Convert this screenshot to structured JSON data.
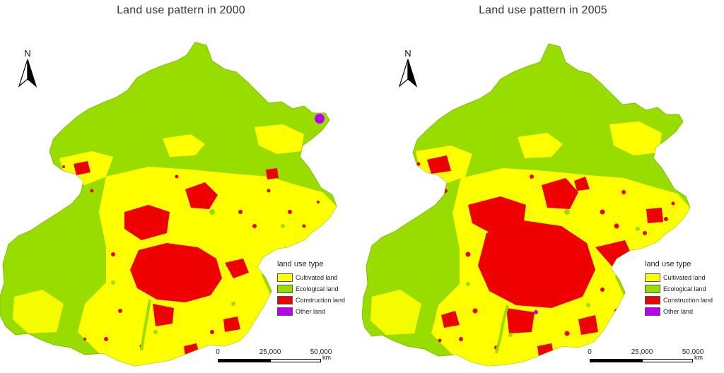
{
  "maps": [
    {
      "title": "Land use pattern in 2000",
      "year": "2000"
    },
    {
      "title": "Land use pattern in 2005",
      "year": "2005"
    }
  ],
  "north": {
    "label": "N"
  },
  "legend": {
    "title": "land use type",
    "items": [
      {
        "label": "Cultivated land",
        "color": "#ffff00"
      },
      {
        "label": "Ecological land",
        "color": "#99dd00"
      },
      {
        "label": "Construction land",
        "color": "#ee0000"
      },
      {
        "label": "Other land",
        "color": "#bb00ee"
      }
    ]
  },
  "scale": {
    "ticks": [
      "0",
      "25,000",
      "50,000"
    ],
    "unit": "km"
  }
}
